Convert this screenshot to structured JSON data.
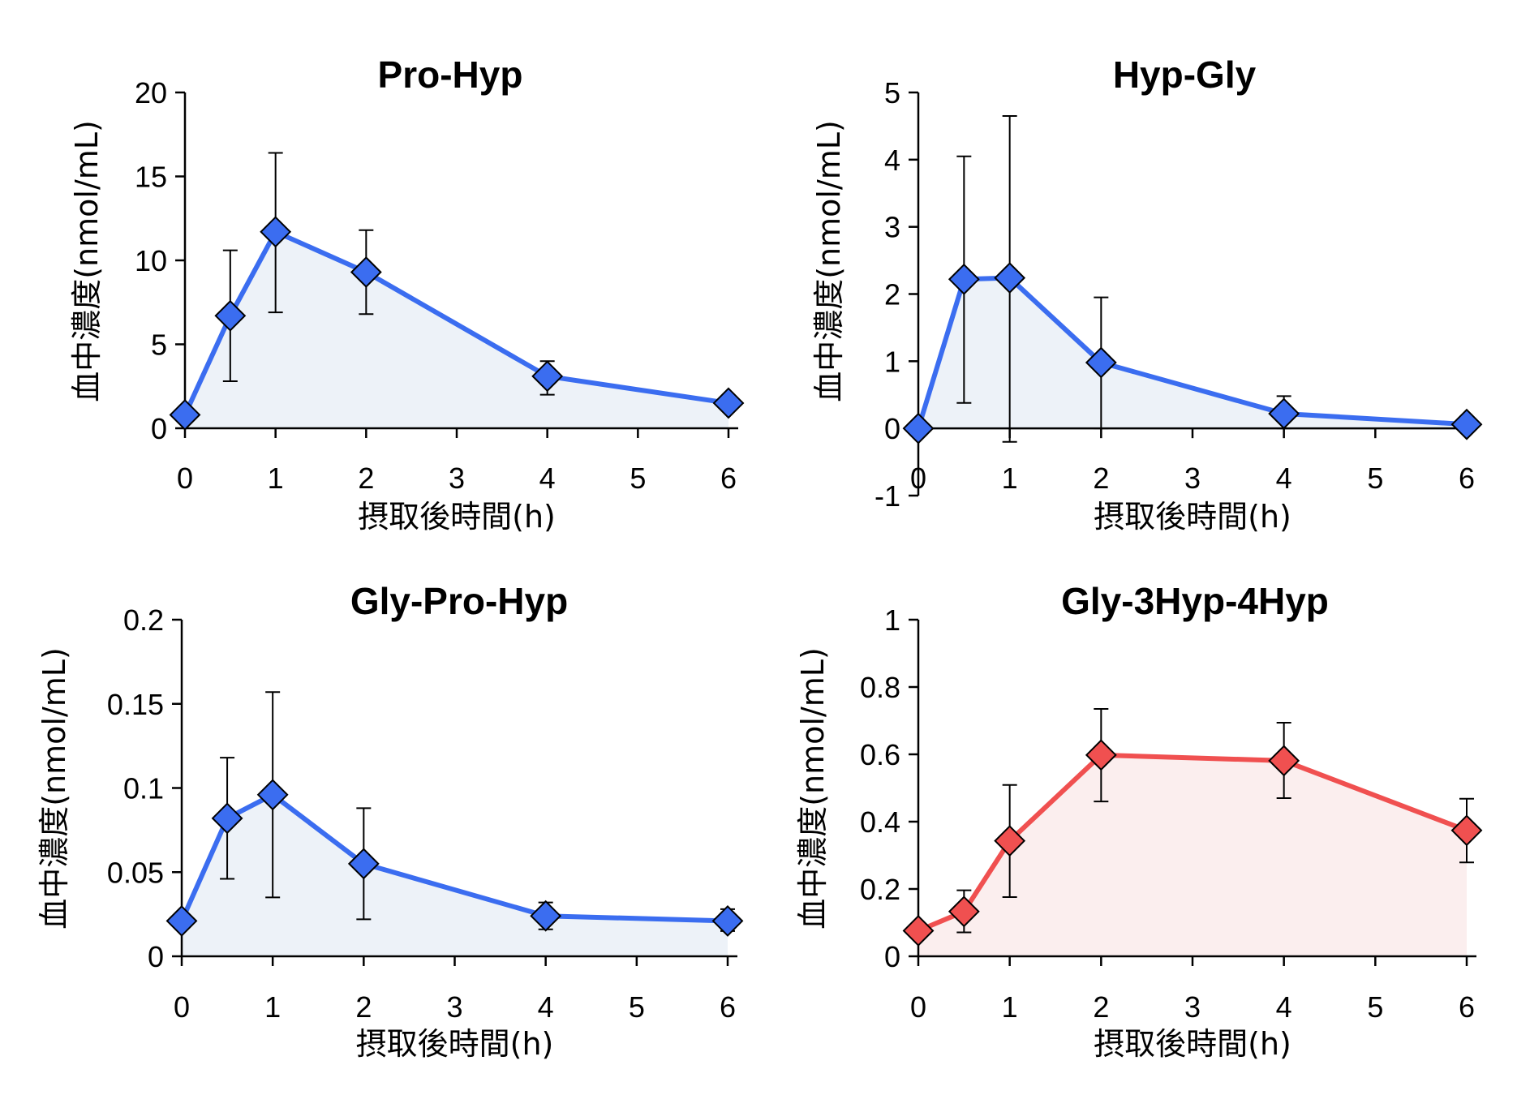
{
  "chart_data": [
    {
      "type": "line",
      "title": "Pro-Hyp",
      "xlabel": "摂取後時間(h)",
      "ylabel": "血中濃度(nmol/mL)",
      "x": [
        0,
        0.5,
        1,
        2,
        4,
        6
      ],
      "series": [
        {
          "name": "Pro-Hyp",
          "values": [
            0.8,
            6.7,
            11.7,
            9.3,
            3.1,
            1.5
          ],
          "error_low": [
            0.8,
            2.8,
            6.9,
            6.8,
            2.0,
            1.5
          ],
          "error_high": [
            0.8,
            10.6,
            16.4,
            11.8,
            4.0,
            1.5
          ]
        }
      ],
      "xlim": [
        0,
        6
      ],
      "ylim": [
        0,
        20
      ],
      "xticks": [
        0,
        1,
        2,
        3,
        4,
        5,
        6
      ],
      "yticks": [
        0,
        5,
        10,
        15,
        20
      ],
      "ytick_labels": [
        "0",
        "5",
        "10",
        "15",
        "20"
      ],
      "color": "#3b6df0",
      "fill_color": "#edf2f8"
    },
    {
      "type": "line",
      "title": "Hyp-Gly",
      "xlabel": "摂取後時間(h)",
      "ylabel": "血中濃度(nmol/mL)",
      "x": [
        0,
        0.5,
        1,
        2,
        4,
        6
      ],
      "series": [
        {
          "name": "Hyp-Gly",
          "values": [
            0.0,
            2.22,
            2.24,
            0.98,
            0.22,
            0.06
          ],
          "error_low": [
            0.0,
            0.38,
            -0.2,
            0.0,
            0.0,
            0.06
          ],
          "error_high": [
            0.0,
            4.05,
            4.65,
            1.95,
            0.48,
            0.06
          ]
        }
      ],
      "xlim": [
        0,
        6
      ],
      "ylim": [
        -1,
        5
      ],
      "xticks": [
        0,
        1,
        2,
        3,
        4,
        5,
        6
      ],
      "yticks": [
        -1,
        0,
        1,
        2,
        3,
        4,
        5
      ],
      "ytick_labels": [
        "-1",
        "0",
        "1",
        "2",
        "3",
        "4",
        "5"
      ],
      "color": "#3b6df0",
      "fill_color": "#edf2f8"
    },
    {
      "type": "line",
      "title": "Gly-Pro-Hyp",
      "xlabel": "摂取後時間(h)",
      "ylabel": "血中濃度(nmol/mL)",
      "x": [
        0,
        0.5,
        1,
        2,
        4,
        6
      ],
      "series": [
        {
          "name": "Gly-Pro-Hyp",
          "values": [
            0.021,
            0.082,
            0.096,
            0.055,
            0.024,
            0.021
          ],
          "error_low": [
            0.021,
            0.046,
            0.035,
            0.022,
            0.016,
            0.015
          ],
          "error_high": [
            0.021,
            0.118,
            0.157,
            0.088,
            0.032,
            0.028
          ]
        }
      ],
      "xlim": [
        0,
        6
      ],
      "ylim": [
        0,
        0.2
      ],
      "xticks": [
        0,
        1,
        2,
        3,
        4,
        5,
        6
      ],
      "yticks": [
        0,
        0.05,
        0.1,
        0.15,
        0.2
      ],
      "ytick_labels": [
        "0",
        "0.05",
        "0.1",
        "0.15",
        "0.2"
      ],
      "color": "#3b6df0",
      "fill_color": "#edf2f8"
    },
    {
      "type": "line",
      "title": "Gly-3Hyp-4Hyp",
      "xlabel": "摂取後時間(h)",
      "ylabel": "血中濃度(nmol/mL)",
      "x": [
        0,
        0.5,
        1,
        2,
        4,
        6
      ],
      "series": [
        {
          "name": "Gly-3Hyp-4Hyp",
          "values": [
            0.076,
            0.133,
            0.343,
            0.598,
            0.581,
            0.374
          ],
          "error_low": [
            0.076,
            0.071,
            0.176,
            0.46,
            0.47,
            0.279
          ],
          "error_high": [
            0.076,
            0.196,
            0.509,
            0.735,
            0.694,
            0.468
          ]
        }
      ],
      "xlim": [
        0,
        6
      ],
      "ylim": [
        0,
        1
      ],
      "xticks": [
        0,
        1,
        2,
        3,
        4,
        5,
        6
      ],
      "yticks": [
        0,
        0.2,
        0.4,
        0.6,
        0.8,
        1
      ],
      "ytick_labels": [
        "0",
        "0.2",
        "0.4",
        "0.6",
        "0.8",
        "1"
      ],
      "color": "#f05050",
      "fill_color": "#fbeeee"
    }
  ]
}
